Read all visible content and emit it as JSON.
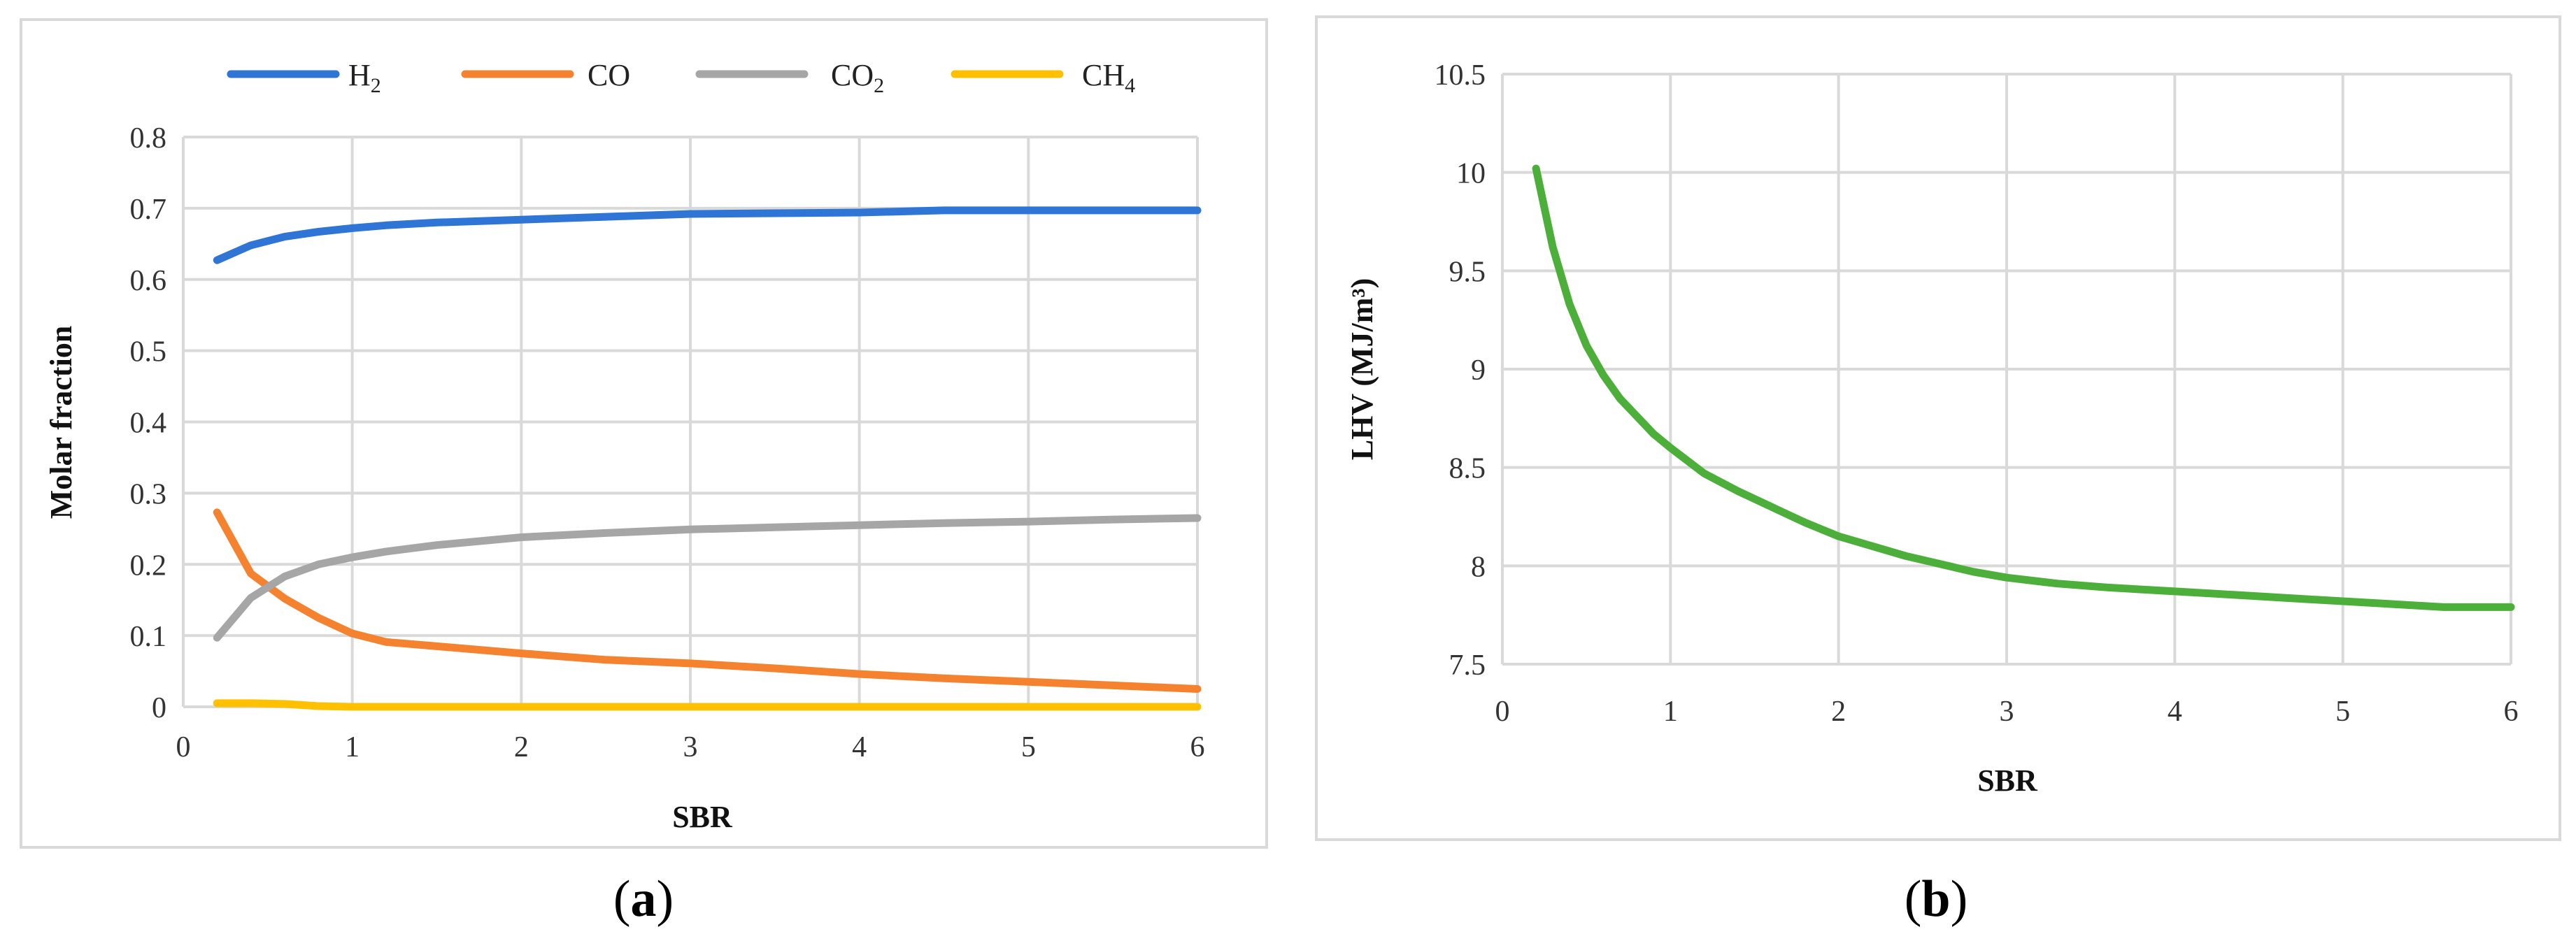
{
  "chart_data": [
    {
      "panel": "a",
      "type": "line",
      "xlabel": "SBR",
      "ylabel": "Molar fraction",
      "xlim": [
        0,
        6
      ],
      "ylim": [
        0,
        0.8
      ],
      "xticks": [
        "0",
        "1",
        "2",
        "3",
        "4",
        "5",
        "6"
      ],
      "yticks": [
        "0",
        "0.1",
        "0.2",
        "0.3",
        "0.4",
        "0.5",
        "0.6",
        "0.7",
        "0.8"
      ],
      "grid": true,
      "legend_position": "top",
      "series": [
        {
          "name": "H",
          "subscript": "2",
          "color": "#2e75d6",
          "x": [
            0.2,
            0.4,
            0.6,
            0.8,
            1.0,
            1.2,
            1.5,
            2.0,
            2.5,
            3.0,
            3.5,
            4.0,
            4.5,
            5.0,
            5.5,
            6.0
          ],
          "values": [
            0.627,
            0.648,
            0.66,
            0.667,
            0.672,
            0.676,
            0.68,
            0.684,
            0.688,
            0.692,
            0.693,
            0.694,
            0.697,
            0.697,
            0.697,
            0.697
          ]
        },
        {
          "name": "CO",
          "subscript": "",
          "color": "#f5822e",
          "x": [
            0.2,
            0.4,
            0.6,
            0.8,
            1.0,
            1.2,
            1.5,
            2.0,
            2.5,
            3.0,
            3.5,
            4.0,
            4.5,
            5.0,
            5.5,
            6.0
          ],
          "values": [
            0.273,
            0.187,
            0.152,
            0.125,
            0.103,
            0.091,
            0.085,
            0.075,
            0.066,
            0.061,
            0.054,
            0.046,
            0.04,
            0.035,
            0.03,
            0.025
          ]
        },
        {
          "name": "CO",
          "subscript": "2",
          "color": "#a6a6a6",
          "x": [
            0.2,
            0.4,
            0.6,
            0.8,
            1.0,
            1.2,
            1.5,
            2.0,
            2.5,
            3.0,
            3.5,
            4.0,
            4.5,
            5.0,
            5.5,
            6.0
          ],
          "values": [
            0.097,
            0.153,
            0.183,
            0.2,
            0.21,
            0.218,
            0.227,
            0.238,
            0.244,
            0.249,
            0.252,
            0.255,
            0.258,
            0.26,
            0.263,
            0.265
          ]
        },
        {
          "name": "CH",
          "subscript": "4",
          "color": "#ffc000",
          "x": [
            0.2,
            0.4,
            0.6,
            0.8,
            1.0,
            1.5,
            2.0,
            3.0,
            4.0,
            5.0,
            6.0
          ],
          "values": [
            0.005,
            0.005,
            0.004,
            0.001,
            0.0,
            0.0,
            0.0,
            0.0,
            0.0,
            0.0,
            0.0
          ]
        }
      ]
    },
    {
      "panel": "b",
      "type": "line",
      "xlabel": "SBR",
      "ylabel": "LHV (MJ/m³)",
      "xlim": [
        0,
        6
      ],
      "ylim": [
        7.5,
        10.5
      ],
      "xticks": [
        "0",
        "1",
        "2",
        "3",
        "4",
        "5",
        "6"
      ],
      "yticks": [
        "7.5",
        "8",
        "8.5",
        "9",
        "9.5",
        "10",
        "10.5"
      ],
      "grid": true,
      "series": [
        {
          "name": "LHV",
          "color": "#4caf3a",
          "x": [
            0.2,
            0.3,
            0.4,
            0.5,
            0.6,
            0.7,
            0.8,
            0.9,
            1.0,
            1.2,
            1.4,
            1.6,
            1.8,
            2.0,
            2.2,
            2.4,
            2.6,
            2.8,
            3.0,
            3.3,
            3.6,
            4.0,
            4.4,
            4.8,
            5.2,
            5.6,
            6.0
          ],
          "values": [
            10.02,
            9.62,
            9.33,
            9.12,
            8.97,
            8.85,
            8.76,
            8.67,
            8.6,
            8.47,
            8.38,
            8.3,
            8.22,
            8.15,
            8.1,
            8.05,
            8.01,
            7.97,
            7.94,
            7.91,
            7.89,
            7.87,
            7.85,
            7.83,
            7.81,
            7.79,
            7.79
          ]
        }
      ]
    }
  ],
  "panel_labels": [
    "a",
    "b"
  ]
}
